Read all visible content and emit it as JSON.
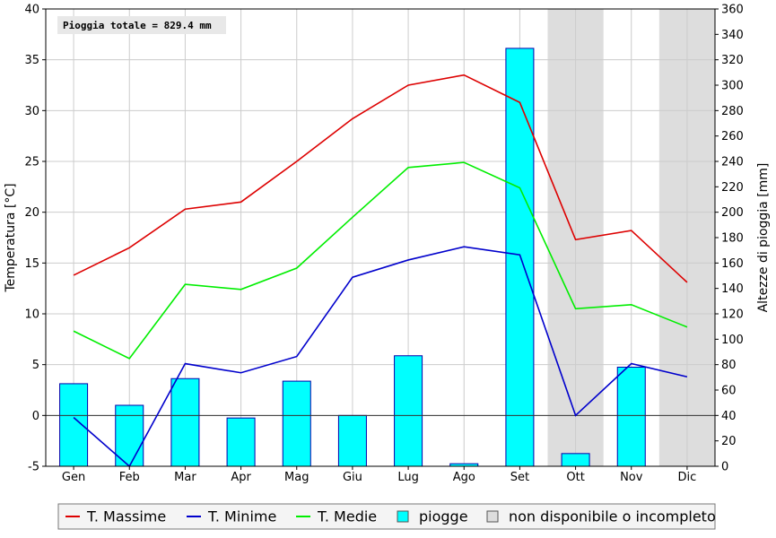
{
  "chart_data": {
    "type": "bar",
    "categories": [
      "Gen",
      "Feb",
      "Mar",
      "Apr",
      "Mag",
      "Giu",
      "Lug",
      "Ago",
      "Set",
      "Ott",
      "Nov",
      "Dic"
    ],
    "y_left": {
      "label": "Temperatura [°C]",
      "min": -5,
      "max": 40,
      "step": 5
    },
    "y_right": {
      "label": "Altezze di pioggia [mm]",
      "min": 0,
      "max": 360,
      "step": 20
    },
    "annotation": "Pioggia totale = 829.4 mm",
    "unavailable_months": [
      "Ott",
      "Dic"
    ],
    "series": [
      {
        "name": "T. Massime",
        "axis": "left",
        "kind": "line",
        "color": "#dd0000",
        "values": [
          13.8,
          16.5,
          20.3,
          21.0,
          25.0,
          29.2,
          32.5,
          33.5,
          30.8,
          17.3,
          18.2,
          13.1
        ]
      },
      {
        "name": "T. Minime",
        "axis": "left",
        "kind": "line",
        "color": "#0000cc",
        "values": [
          -0.2,
          -5.0,
          5.1,
          4.2,
          5.8,
          13.6,
          15.3,
          16.6,
          15.8,
          0.0,
          5.1,
          3.8
        ]
      },
      {
        "name": "T. Medie",
        "axis": "left",
        "kind": "line",
        "color": "#00ee00",
        "values": [
          8.3,
          5.6,
          12.9,
          12.4,
          14.5,
          19.5,
          24.4,
          24.9,
          22.4,
          10.5,
          10.9,
          8.7
        ]
      },
      {
        "name": "piogge",
        "axis": "right",
        "kind": "bar",
        "color": "#00ffff",
        "values": [
          65,
          48,
          69,
          38,
          67,
          40,
          87,
          2,
          329,
          10,
          78,
          null
        ]
      }
    ],
    "legend": [
      {
        "label": "T. Massime",
        "symbol": "line",
        "color": "#dd0000"
      },
      {
        "label": "T. Minime",
        "symbol": "line",
        "color": "#0000cc"
      },
      {
        "label": "T. Medie",
        "symbol": "line",
        "color": "#00ee00"
      },
      {
        "label": "piogge",
        "symbol": "box",
        "color": "#00ffff"
      },
      {
        "label": "non disponibile o incompleto",
        "symbol": "box",
        "color": "#dddddd"
      }
    ]
  }
}
